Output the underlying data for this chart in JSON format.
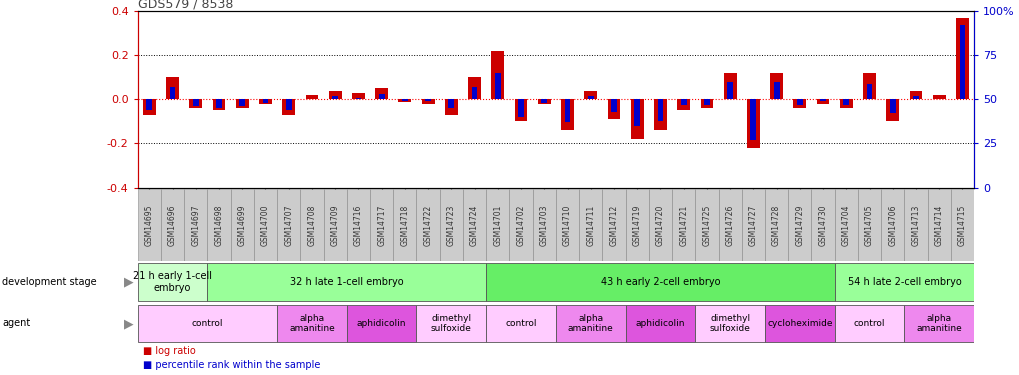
{
  "title": "GDS579 / 8538",
  "samples": [
    "GSM14695",
    "GSM14696",
    "GSM14697",
    "GSM14698",
    "GSM14699",
    "GSM14700",
    "GSM14707",
    "GSM14708",
    "GSM14709",
    "GSM14716",
    "GSM14717",
    "GSM14718",
    "GSM14722",
    "GSM14723",
    "GSM14724",
    "GSM14701",
    "GSM14702",
    "GSM14703",
    "GSM14710",
    "GSM14711",
    "GSM14712",
    "GSM14719",
    "GSM14720",
    "GSM14721",
    "GSM14725",
    "GSM14726",
    "GSM14727",
    "GSM14728",
    "GSM14729",
    "GSM14730",
    "GSM14704",
    "GSM14705",
    "GSM14706",
    "GSM14713",
    "GSM14714",
    "GSM14715"
  ],
  "log_ratio": [
    -0.07,
    0.1,
    -0.04,
    -0.05,
    -0.04,
    -0.02,
    -0.07,
    0.02,
    0.04,
    0.03,
    0.05,
    -0.01,
    -0.02,
    -0.07,
    0.1,
    0.22,
    -0.1,
    -0.02,
    -0.14,
    0.04,
    -0.09,
    -0.18,
    -0.14,
    -0.05,
    -0.04,
    0.12,
    -0.22,
    0.12,
    -0.04,
    -0.02,
    -0.04,
    0.12,
    -0.1,
    0.04,
    0.02,
    0.37
  ],
  "percentile": [
    44,
    57,
    46,
    45,
    46,
    48,
    44,
    50,
    52,
    51,
    53,
    49,
    49,
    45,
    57,
    65,
    40,
    48,
    37,
    52,
    43,
    35,
    38,
    47,
    47,
    60,
    27,
    60,
    47,
    49,
    47,
    59,
    42,
    52,
    50,
    92
  ],
  "dev_stages": [
    {
      "label": "21 h early 1-cell\nembryo",
      "start": 0,
      "end": 3,
      "color": "#ccffcc"
    },
    {
      "label": "32 h late 1-cell embryo",
      "start": 3,
      "end": 15,
      "color": "#99ff99"
    },
    {
      "label": "43 h early 2-cell embryo",
      "start": 15,
      "end": 30,
      "color": "#66ee66"
    },
    {
      "label": "54 h late 2-cell embryo",
      "start": 30,
      "end": 36,
      "color": "#99ff99"
    }
  ],
  "agents": [
    {
      "label": "control",
      "start": 0,
      "end": 6,
      "color": "#ffccff"
    },
    {
      "label": "alpha\namanitine",
      "start": 6,
      "end": 9,
      "color": "#ee88ee"
    },
    {
      "label": "aphidicolin",
      "start": 9,
      "end": 12,
      "color": "#dd55dd"
    },
    {
      "label": "dimethyl\nsulfoxide",
      "start": 12,
      "end": 15,
      "color": "#ffccff"
    },
    {
      "label": "control",
      "start": 15,
      "end": 18,
      "color": "#ffccff"
    },
    {
      "label": "alpha\namanitine",
      "start": 18,
      "end": 21,
      "color": "#ee88ee"
    },
    {
      "label": "aphidicolin",
      "start": 21,
      "end": 24,
      "color": "#dd55dd"
    },
    {
      "label": "dimethyl\nsulfoxide",
      "start": 24,
      "end": 27,
      "color": "#ffccff"
    },
    {
      "label": "cycloheximide",
      "start": 27,
      "end": 30,
      "color": "#dd55dd"
    },
    {
      "label": "control",
      "start": 30,
      "end": 33,
      "color": "#ffccff"
    },
    {
      "label": "alpha\namanitine",
      "start": 33,
      "end": 36,
      "color": "#ee88ee"
    }
  ],
  "ylim": [
    -0.4,
    0.4
  ],
  "yticks_left": [
    -0.4,
    -0.2,
    0.0,
    0.2,
    0.4
  ],
  "y2ticks": [
    0,
    25,
    50,
    75,
    100
  ],
  "bar_width": 0.55,
  "pct_bar_width": 0.25,
  "log_ratio_color": "#cc0000",
  "percentile_color": "#0000cc",
  "bg_color": "#ffffff",
  "label_bg": "#cccccc",
  "title_color": "#444444"
}
